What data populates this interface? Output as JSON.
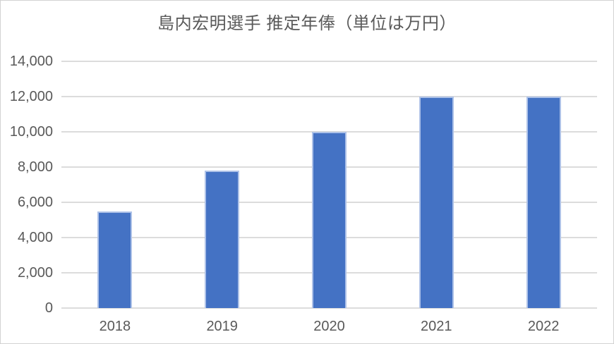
{
  "chart_data": {
    "type": "bar",
    "title": "島内宏明選手 推定年俸（単位は万円）",
    "categories": [
      "2018",
      "2019",
      "2020",
      "2021",
      "2022"
    ],
    "values": [
      5500,
      7800,
      10000,
      12000,
      12000
    ],
    "xlabel": "",
    "ylabel": "",
    "ylim": [
      0,
      14000
    ],
    "ytick_step": 2000,
    "yticks": [
      "14,000",
      "12,000",
      "10,000",
      "8,000",
      "6,000",
      "4,000",
      "2,000",
      "0"
    ],
    "grid": true,
    "legend": false,
    "bar_color": "#4472C4",
    "bar_border_color": "#AEC2E8",
    "gridline_color": "#DCDCDC",
    "text_color": "#595959",
    "chart_border_color": "#D2D2D2",
    "background": "#FFFFFF"
  }
}
